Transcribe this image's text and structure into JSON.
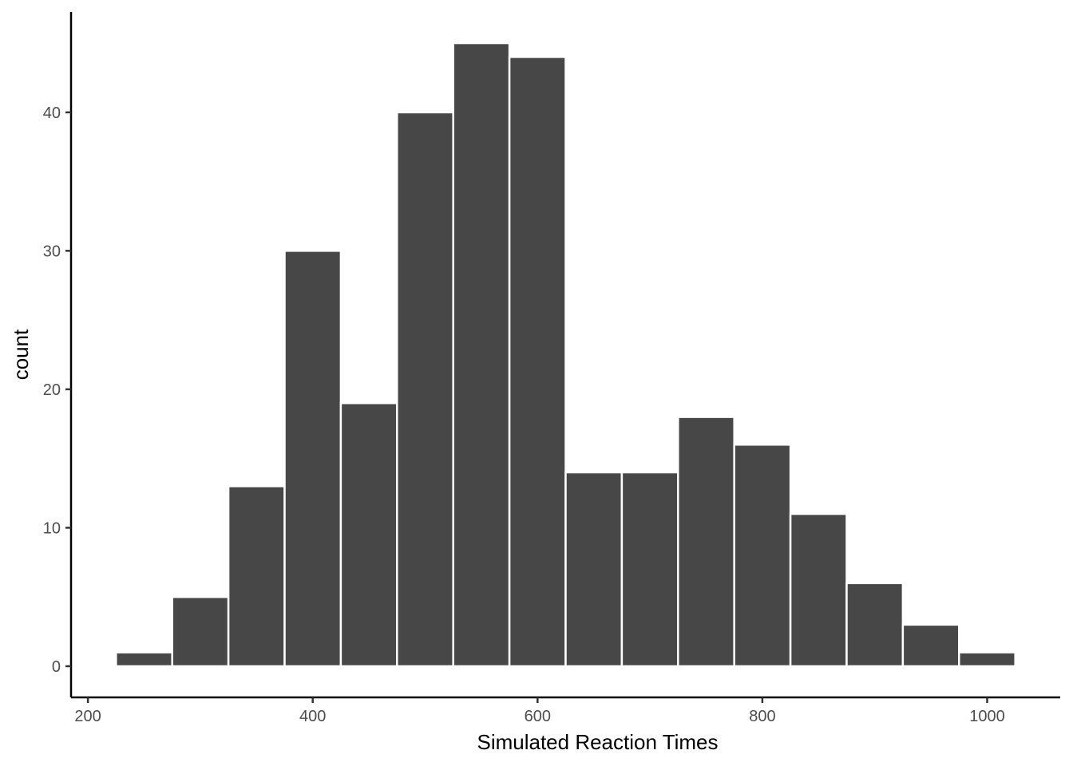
{
  "chart_data": {
    "type": "bar",
    "title": "",
    "xlabel": "Simulated Reaction Times",
    "ylabel": "count",
    "bins": [
      {
        "x0": 225,
        "x1": 275,
        "count": 1
      },
      {
        "x0": 275,
        "x1": 325,
        "count": 5
      },
      {
        "x0": 325,
        "x1": 375,
        "count": 13
      },
      {
        "x0": 375,
        "x1": 425,
        "count": 30
      },
      {
        "x0": 425,
        "x1": 475,
        "count": 19
      },
      {
        "x0": 475,
        "x1": 525,
        "count": 40
      },
      {
        "x0": 525,
        "x1": 575,
        "count": 45
      },
      {
        "x0": 575,
        "x1": 625,
        "count": 44
      },
      {
        "x0": 625,
        "x1": 675,
        "count": 14
      },
      {
        "x0": 675,
        "x1": 725,
        "count": 14
      },
      {
        "x0": 725,
        "x1": 775,
        "count": 18
      },
      {
        "x0": 775,
        "x1": 825,
        "count": 16
      },
      {
        "x0": 825,
        "x1": 875,
        "count": 11
      },
      {
        "x0": 875,
        "x1": 925,
        "count": 6
      },
      {
        "x0": 925,
        "x1": 975,
        "count": 3
      },
      {
        "x0": 975,
        "x1": 1025,
        "count": 1
      }
    ],
    "xlim": [
      185,
      1065
    ],
    "ylim": [
      -2.25,
      47.25
    ],
    "x_ticks": [
      200,
      400,
      600,
      800,
      1000
    ],
    "x_tick_labels": [
      "200",
      "400",
      "600",
      "800",
      "1000"
    ],
    "y_ticks": [
      0,
      10,
      20,
      30,
      40
    ],
    "y_tick_labels": [
      "0",
      "10",
      "20",
      "30",
      "40"
    ],
    "grid": false,
    "legend": "none",
    "colors": {
      "bar_fill": "#474747",
      "bar_outline": "#ffffff",
      "axis": "#000000",
      "tick_text": "#4d4d4d"
    }
  }
}
